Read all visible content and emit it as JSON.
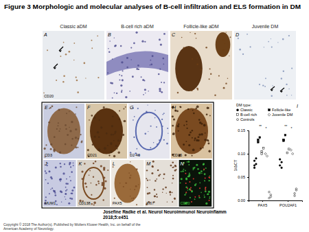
{
  "header": {
    "title": "Figure 3 Morphologic and molecular analyses of B-cell infiltration and ELS formation in DM"
  },
  "panels_top": [
    {
      "letter": "A",
      "title": "Classic aDM",
      "stain": "CD20"
    },
    {
      "letter": "B",
      "title": "B-cell rich aDM"
    },
    {
      "letter": "C",
      "title": "Follicle-like aDM"
    },
    {
      "letter": "D",
      "title": "Juvenile DM"
    }
  ],
  "panels_inset": [
    {
      "letter": "E",
      "stain": "CD3"
    },
    {
      "letter": "F",
      "stain": "CD21"
    },
    {
      "letter": "G",
      "stain": "D2-40"
    },
    {
      "letter": "H",
      "stain": "CD35"
    },
    {
      "letter": "J",
      "stain": "MUM1"
    },
    {
      "letter": "K",
      "stain": "CD138"
    },
    {
      "letter": "L",
      "stain": "PAX5"
    },
    {
      "letter": "M",
      "stain": "Ki67"
    },
    {
      "letter": "N",
      "stain": "CD20"
    }
  ],
  "chart_data": {
    "type": "scatter",
    "panel_label": "I",
    "y_label": "1/ΔCT",
    "legend_title": "DM type:",
    "legend": "top",
    "categories": [
      "PAX5",
      "POU2AF1"
    ],
    "ylim": [
      0,
      0.15
    ],
    "yticks": [
      {
        "value": 0,
        "label": "0.00"
      },
      {
        "value": 0.05,
        "label": "0.05"
      },
      {
        "value": 0.1,
        "label": "0.10"
      },
      {
        "value": 0.15,
        "label": "0.15"
      }
    ],
    "annotations": [
      "**",
      "*",
      "**",
      "*"
    ],
    "series": [
      {
        "name": "Classic",
        "color": "#000000",
        "marker": "circle",
        "values": [
          [
            0.07,
            0.078,
            0.085,
            0.09,
            0.075
          ],
          [
            0.075,
            0.082,
            0.088,
            0.07
          ]
        ]
      },
      {
        "name": "Follicle-like",
        "color": "#000000",
        "marker": "square",
        "values": [
          [
            0.125,
            0.135,
            0.13
          ],
          [
            0.13,
            0.14,
            0.128
          ]
        ]
      },
      {
        "name": "B-cell rich",
        "color": "#000000",
        "marker": "square-open",
        "values": [
          [
            0.1,
            0.112,
            0.105
          ],
          [
            0.102,
            0.11
          ]
        ]
      },
      {
        "name": "Juvenile DM",
        "color": "#000000",
        "marker": "diamond-open",
        "values": [
          [
            0.1,
            0.095
          ],
          [
            0.108,
            0.1
          ]
        ]
      },
      {
        "name": "Controls",
        "color": "#000000",
        "marker": "circle-open",
        "values": [
          [
            0.005,
            0.012,
            0.018,
            0.008
          ],
          [
            0.015,
            0.022,
            0.01,
            0.025
          ]
        ]
      }
    ]
  },
  "footer": {
    "citation": [
      "Josefine Radke et al. Neurol Neuroimmunol Neuroinflamm",
      "2018;5:e451"
    ],
    "copyright": [
      "Copyright © 2018 The Author(s). Published by Wolters Kluwer Health, Inc. on behalf of the",
      "American Academy of Neurology."
    ]
  }
}
